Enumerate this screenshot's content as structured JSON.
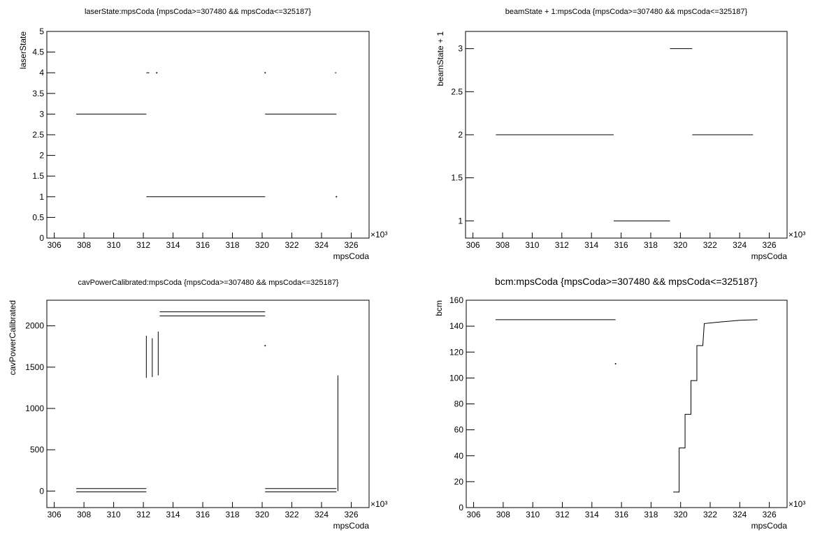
{
  "chart_data": [
    {
      "type": "scatter",
      "title": "laserState:mpsCoda {mpsCoda>=307480 && mpsCoda<=325187}",
      "x_label": "mpsCoda",
      "y_label": "laserState",
      "x_multiplier": "×10³",
      "color": "#000000",
      "xlim": [
        305.5,
        327.2
      ],
      "xticks": [
        306,
        308,
        310,
        312,
        314,
        316,
        318,
        320,
        322,
        324,
        326
      ],
      "ylim": [
        0,
        5
      ],
      "yticks": [
        0,
        0.5,
        1,
        1.5,
        2,
        2.5,
        3,
        3.5,
        4,
        4.5,
        5
      ],
      "series": [
        {
          "x": [
            307.48,
            312.2
          ],
          "values": [
            3,
            3
          ]
        },
        {
          "x": [
            312.2,
            320.2
          ],
          "values": [
            1,
            1
          ]
        },
        {
          "x": [
            320.2,
            325.0
          ],
          "values": [
            3,
            3
          ]
        },
        {
          "x": [
            312.2,
            312.4
          ],
          "values": [
            4,
            4
          ]
        },
        {
          "x": [
            312.9
          ],
          "values": [
            4
          ]
        },
        {
          "x": [
            320.2
          ],
          "values": [
            4
          ]
        },
        {
          "x": [
            324.9,
            325.0
          ],
          "values": [
            4,
            4
          ]
        },
        {
          "x": [
            325.0
          ],
          "values": [
            1
          ]
        }
      ]
    },
    {
      "type": "scatter",
      "title": "beamState + 1:mpsCoda {mpsCoda>=307480 && mpsCoda<=325187}",
      "x_label": "mpsCoda",
      "y_label": "beamState + 1",
      "x_multiplier": "×10³",
      "color": "#000000",
      "xlim": [
        305.5,
        327.2
      ],
      "xticks": [
        306,
        308,
        310,
        312,
        314,
        316,
        318,
        320,
        322,
        324,
        326
      ],
      "ylim": [
        0.8,
        3.2
      ],
      "yticks": [
        1,
        1.5,
        2,
        2.5,
        3
      ],
      "series": [
        {
          "x": [
            307.55,
            315.5
          ],
          "values": [
            2,
            2
          ]
        },
        {
          "x": [
            315.5,
            319.3
          ],
          "values": [
            1,
            1
          ]
        },
        {
          "x": [
            319.3,
            320.8
          ],
          "values": [
            3,
            3
          ]
        },
        {
          "x": [
            320.8,
            324.9
          ],
          "values": [
            2,
            2
          ]
        }
      ]
    },
    {
      "type": "scatter",
      "title": "cavPowerCalibrated:mpsCoda {mpsCoda>=307480 && mpsCoda<=325187}",
      "x_label": "mpsCoda",
      "y_label": "cavPowerCalibrated",
      "x_multiplier": "×10³",
      "color": "#000000",
      "xlim": [
        305.5,
        327.2
      ],
      "xticks": [
        306,
        308,
        310,
        312,
        314,
        316,
        318,
        320,
        322,
        324,
        326
      ],
      "ylim": [
        -200,
        2310
      ],
      "yticks": [
        0,
        500,
        1000,
        1500,
        2000
      ],
      "series": [
        {
          "x": [
            307.48,
            312.2
          ],
          "values": [
            30,
            30
          ]
        },
        {
          "x": [
            307.48,
            312.2
          ],
          "values": [
            -10,
            -10
          ]
        },
        {
          "x": [
            312.2,
            312.2
          ],
          "values": [
            1370,
            1880
          ]
        },
        {
          "x": [
            312.6,
            312.6
          ],
          "values": [
            1380,
            1850
          ]
        },
        {
          "x": [
            313.0,
            313.0
          ],
          "values": [
            1400,
            1930
          ]
        },
        {
          "x": [
            313.1,
            320.2
          ],
          "values": [
            2120,
            2120
          ]
        },
        {
          "x": [
            313.1,
            320.2
          ],
          "values": [
            2170,
            2170
          ]
        },
        {
          "x": [
            320.2
          ],
          "values": [
            1760
          ]
        },
        {
          "x": [
            320.2,
            325.0
          ],
          "values": [
            30,
            30
          ]
        },
        {
          "x": [
            320.2,
            325.0
          ],
          "values": [
            -10,
            -10
          ]
        },
        {
          "x": [
            325.1,
            325.1
          ],
          "values": [
            0,
            1400
          ]
        }
      ]
    },
    {
      "type": "scatter",
      "title": "bcm:mpsCoda {mpsCoda>=307480 && mpsCoda<=325187}",
      "x_label": "mpsCoda",
      "y_label": "bcm",
      "x_multiplier": "×10³",
      "color": "#000000",
      "xlim": [
        305.5,
        327.2
      ],
      "xticks": [
        306,
        308,
        310,
        312,
        314,
        316,
        318,
        320,
        322,
        324,
        326
      ],
      "ylim": [
        0,
        160
      ],
      "yticks": [
        0,
        20,
        40,
        60,
        80,
        100,
        120,
        140,
        160
      ],
      "series": [
        {
          "x": [
            307.48,
            315.6
          ],
          "values": [
            145,
            145
          ]
        },
        {
          "x": [
            315.6
          ],
          "values": [
            111
          ]
        },
        {
          "x": [
            319.5,
            319.9,
            319.9,
            320.3,
            320.3,
            320.7,
            320.7,
            321.1,
            321.1,
            321.5,
            321.6,
            322.5,
            324.0,
            325.2
          ],
          "values": [
            12,
            12,
            46,
            46,
            72,
            72,
            98,
            98,
            125,
            125,
            142,
            143,
            144.5,
            145
          ]
        }
      ]
    }
  ]
}
